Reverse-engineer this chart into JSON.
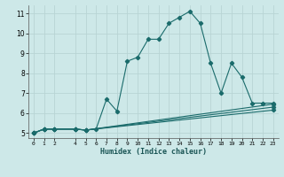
{
  "title": "",
  "xlabel": "Humidex (Indice chaleur)",
  "ylabel": "",
  "bg_color": "#cde8e8",
  "grid_color": "#b8d4d4",
  "line_color": "#1a6b6b",
  "xlim": [
    -0.5,
    23.5
  ],
  "ylim": [
    4.75,
    11.4
  ],
  "xticks": [
    0,
    1,
    2,
    4,
    5,
    6,
    7,
    8,
    9,
    10,
    11,
    12,
    13,
    14,
    15,
    16,
    17,
    18,
    19,
    20,
    21,
    22,
    23
  ],
  "xtick_labels": [
    "0",
    "1",
    "2",
    "4",
    "5",
    "6",
    "7",
    "8",
    "9",
    "10",
    "11",
    "12",
    "13",
    "14",
    "15",
    "16",
    "17",
    "18",
    "19",
    "20",
    "21",
    "22",
    "23"
  ],
  "yticks": [
    5,
    6,
    7,
    8,
    9,
    10,
    11
  ],
  "series": [
    {
      "x": [
        0,
        1,
        2,
        4,
        5,
        6,
        7,
        8,
        9,
        10,
        11,
        12,
        13,
        14,
        15,
        16,
        17,
        18,
        19,
        20,
        21,
        22,
        23
      ],
      "y": [
        5.0,
        5.2,
        5.2,
        5.2,
        5.15,
        5.2,
        6.7,
        6.1,
        8.6,
        8.8,
        9.7,
        9.7,
        10.5,
        10.8,
        11.1,
        10.5,
        8.5,
        7.0,
        8.5,
        7.8,
        6.5,
        6.5,
        6.5
      ]
    },
    {
      "x": [
        0,
        1,
        2,
        4,
        5,
        23
      ],
      "y": [
        5.0,
        5.2,
        5.2,
        5.2,
        5.15,
        6.45
      ]
    },
    {
      "x": [
        0,
        1,
        2,
        4,
        5,
        23
      ],
      "y": [
        5.0,
        5.2,
        5.2,
        5.2,
        5.15,
        6.3
      ]
    },
    {
      "x": [
        0,
        1,
        2,
        4,
        5,
        23
      ],
      "y": [
        5.0,
        5.2,
        5.2,
        5.2,
        5.15,
        6.15
      ]
    }
  ]
}
